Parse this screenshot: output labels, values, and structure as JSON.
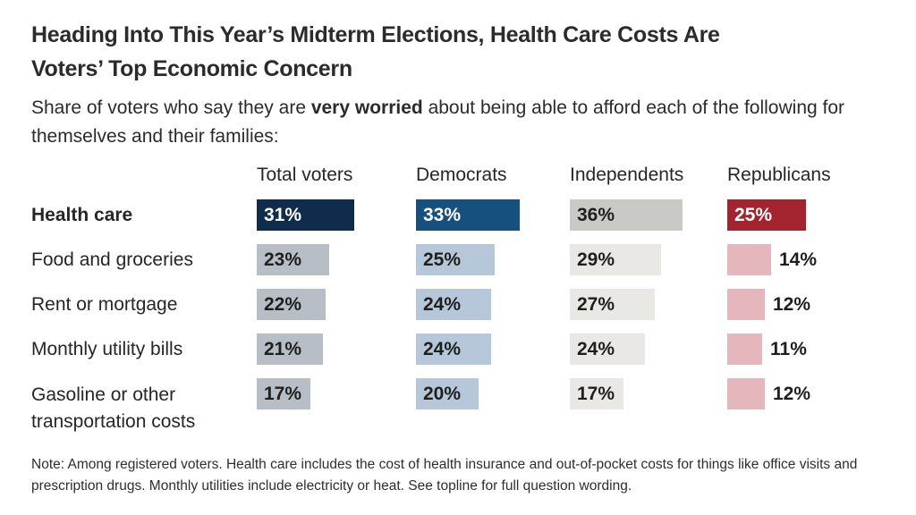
{
  "header": {
    "title_lines": [
      "Heading Into This Year’s Midterm Elections, Health Care Costs Are",
      "Voters’ Top Economic Concern"
    ],
    "subtitle_prefix": "Share of voters who say they are ",
    "subtitle_bold": "very worried",
    "subtitle_suffix": " about being able to afford each of the following for themselves and their families:"
  },
  "note": "Note: Among registered voters. Health care includes the cost of health insurance and out-of-pocket costs for things like office visits and prescription drugs. Monthly utilities include electricity or heat. See topline for full question wording.",
  "chart_data": {
    "type": "bar",
    "orientation": "horizontal",
    "unit": "%",
    "columns": [
      "Total voters",
      "Democrats",
      "Independents",
      "Republicans"
    ],
    "categories": [
      "Health care",
      "Food and groceries",
      "Rent or mortgage",
      "Monthly utility bills",
      "Gasoline or other transportation costs"
    ],
    "series": [
      {
        "name": "Total voters",
        "values": [
          31,
          23,
          22,
          21,
          17
        ]
      },
      {
        "name": "Democrats",
        "values": [
          33,
          25,
          24,
          24,
          20
        ]
      },
      {
        "name": "Independents",
        "values": [
          36,
          29,
          27,
          24,
          17
        ]
      },
      {
        "name": "Republicans",
        "values": [
          25,
          14,
          12,
          11,
          12
        ]
      }
    ],
    "highlighted_category": "Health care",
    "value_range": [
      0,
      40
    ],
    "colors": {
      "highlight": [
        "#102c4c",
        "#16507f",
        "#c9c9c6",
        "#a3242f"
      ],
      "muted": [
        "#b7bec5",
        "#b5c7d8",
        "#e9e8e5",
        "#e5b6bb"
      ],
      "value_text_highlight": [
        "#ffffff",
        "#ffffff",
        "#1f1f1f",
        "#ffffff"
      ],
      "value_text_muted": "#1f1f1f"
    }
  }
}
